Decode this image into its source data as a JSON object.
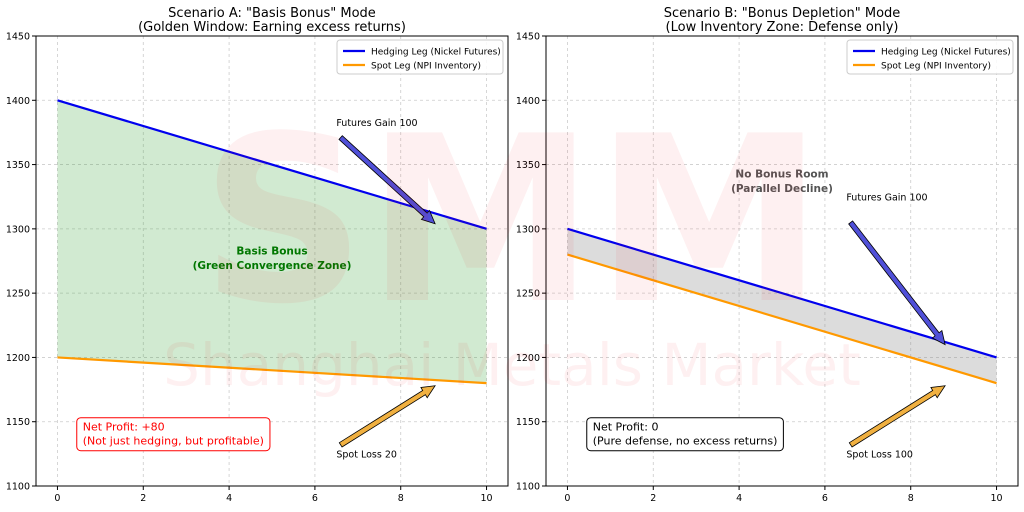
{
  "watermark": {
    "logo": "SMM",
    "text": "Shanghai Metals Market"
  },
  "chart_data": [
    {
      "type": "line",
      "title": "Scenario A: \"Basis Bonus\" Mode",
      "subtitle": "(Golden Window: Earning excess returns)",
      "xlabel": "",
      "ylabel": "",
      "xlim": [
        -0.5,
        10.5
      ],
      "ylim": [
        1100,
        1450
      ],
      "xticks": [
        0,
        2,
        4,
        6,
        8,
        10
      ],
      "yticks": [
        1100,
        1150,
        1200,
        1250,
        1300,
        1350,
        1400,
        1450
      ],
      "grid": true,
      "legend_position": "top-right",
      "series": [
        {
          "name": "Hedging Leg (Nickel Futures)",
          "color": "#0000ee",
          "x": [
            0,
            10
          ],
          "y": [
            1400,
            1300
          ]
        },
        {
          "name": "Spot Leg (NPI Inventory)",
          "color": "#ff9900",
          "x": [
            0,
            10
          ],
          "y": [
            1200,
            1180
          ]
        }
      ],
      "fill": {
        "color": "#2ca02c",
        "opacity": 0.22
      },
      "fill_label": {
        "line1": "Basis Bonus",
        "line2": "(Green Convergence Zone)",
        "x": 5,
        "y1": 1280,
        "y2": 1271,
        "color": "#007700"
      },
      "annotations": [
        {
          "text": "Futures Gain 100",
          "text_x": 6.5,
          "text_y": 1380,
          "from": [
            6.6,
            1371
          ],
          "to": [
            8.8,
            1304
          ]
        },
        {
          "text": "Spot Loss 20",
          "text_x": 6.5,
          "text_y": 1122,
          "from": [
            6.6,
            1132
          ],
          "to": [
            8.8,
            1178
          ]
        }
      ],
      "profit_box": {
        "line1": "Net Profit: +80",
        "line2": "(Not just hedging, but profitable)",
        "x": 0.45,
        "y": 1143,
        "color": "#ff0000"
      }
    },
    {
      "type": "line",
      "title": "Scenario B: \"Bonus Depletion\" Mode",
      "subtitle": "(Low Inventory Zone: Defense only)",
      "xlabel": "",
      "ylabel": "",
      "xlim": [
        -0.5,
        10.5
      ],
      "ylim": [
        1100,
        1450
      ],
      "xticks": [
        0,
        2,
        4,
        6,
        8,
        10
      ],
      "yticks": [
        1100,
        1150,
        1200,
        1250,
        1300,
        1350,
        1400,
        1450
      ],
      "grid": true,
      "legend_position": "top-right",
      "series": [
        {
          "name": "Hedging Leg (Nickel Futures)",
          "color": "#0000ee",
          "x": [
            0,
            10
          ],
          "y": [
            1300,
            1200
          ]
        },
        {
          "name": "Spot Leg (NPI Inventory)",
          "color": "#ff9900",
          "x": [
            0,
            10
          ],
          "y": [
            1280,
            1180
          ]
        }
      ],
      "fill": {
        "color": "#808080",
        "opacity": 0.28
      },
      "fill_label": {
        "line1": "No Bonus Room",
        "line2": "(Parallel Decline)",
        "x": 5,
        "y1": 1340,
        "y2": 1331,
        "color": "#555555"
      },
      "annotations": [
        {
          "text": "Futures Gain 100",
          "text_x": 6.5,
          "text_y": 1322,
          "from": [
            6.6,
            1305
          ],
          "to": [
            8.8,
            1210
          ]
        },
        {
          "text": "Spot Loss 100",
          "text_x": 6.5,
          "text_y": 1122,
          "from": [
            6.6,
            1132
          ],
          "to": [
            8.8,
            1178
          ]
        }
      ],
      "profit_box": {
        "line1": "Net Profit: 0",
        "line2": "(Pure defense, no excess returns)",
        "x": 0.45,
        "y": 1143,
        "color": "#000000"
      }
    }
  ]
}
